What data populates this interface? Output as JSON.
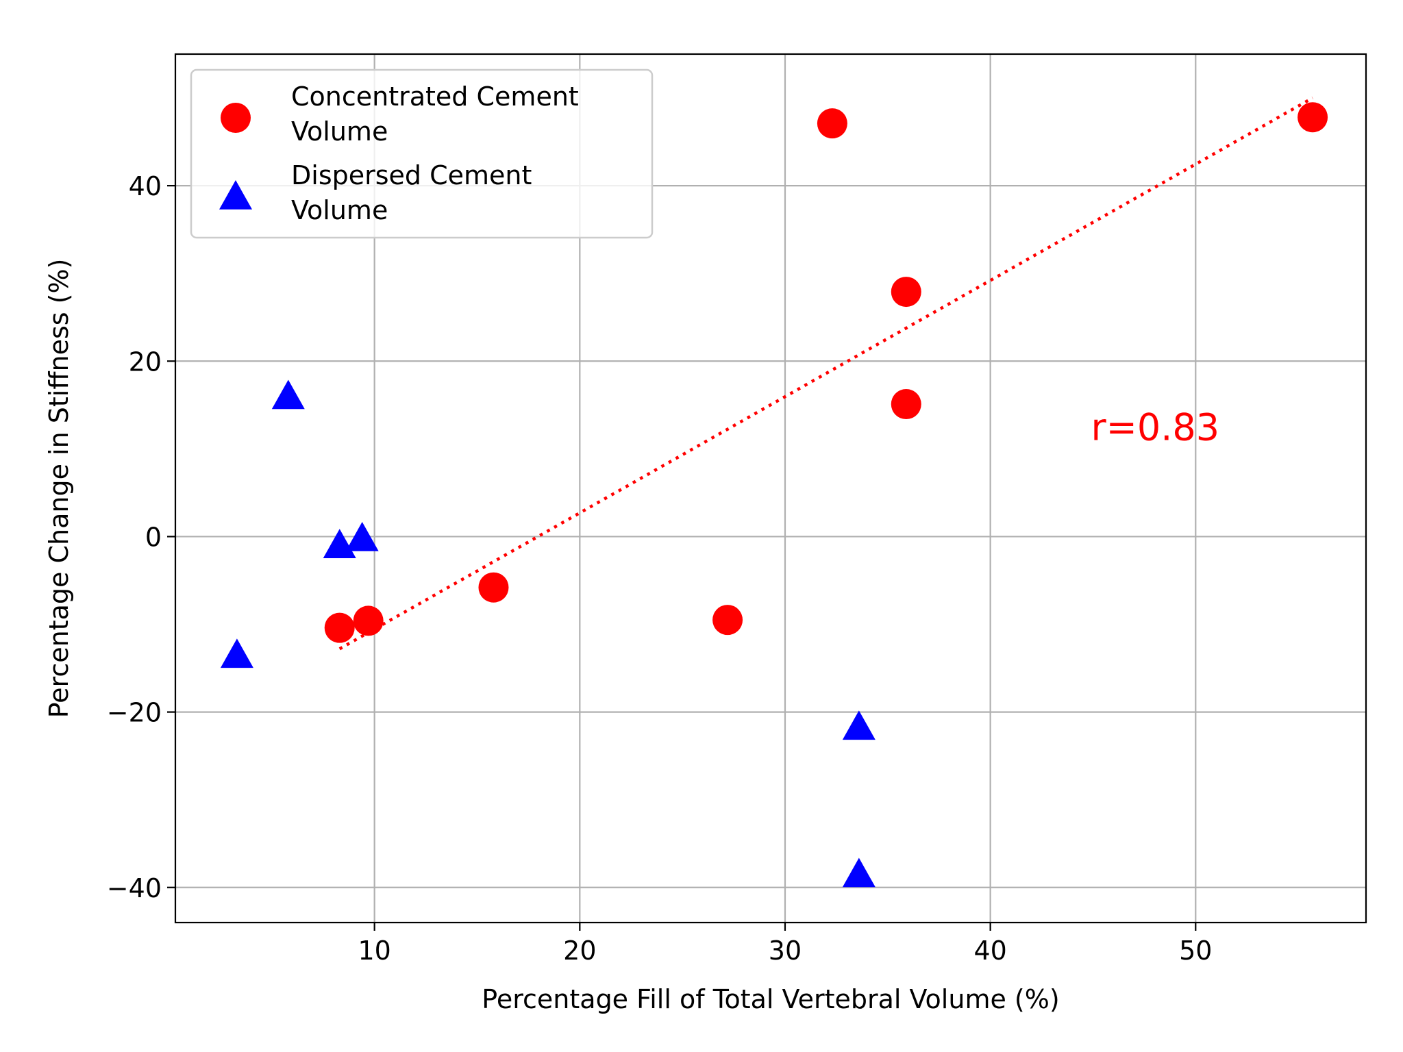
{
  "chart_data": {
    "type": "scatter",
    "xlabel": "Percentage Fill of Total Vertebral Volume (%)",
    "ylabel": "Percentage Change in Stiffness (%)",
    "xlim": [
      0.3,
      58.3
    ],
    "ylim": [
      -44,
      55
    ],
    "xticks": [
      10,
      20,
      30,
      40,
      50
    ],
    "yticks": [
      -40,
      -20,
      0,
      20,
      40
    ],
    "xtick_labels": [
      "10",
      "20",
      "30",
      "40",
      "50"
    ],
    "ytick_labels": [
      "−40",
      "−20",
      "0",
      "20",
      "40"
    ],
    "grid": true,
    "legend_position": "upper-left",
    "series": [
      {
        "name_lines": [
          "Concentrated Cement",
          " Volume"
        ],
        "marker": "circle",
        "color": "#ff0000",
        "points": [
          {
            "x": 8.3,
            "y": -10.4
          },
          {
            "x": 9.7,
            "y": -9.6
          },
          {
            "x": 15.8,
            "y": -5.8
          },
          {
            "x": 27.2,
            "y": -9.5
          },
          {
            "x": 32.3,
            "y": 47.1
          },
          {
            "x": 35.9,
            "y": 27.9
          },
          {
            "x": 35.9,
            "y": 15.1
          },
          {
            "x": 55.7,
            "y": 47.8
          }
        ]
      },
      {
        "name_lines": [
          "Dispersed Cement",
          " Volume"
        ],
        "marker": "triangle",
        "color": "#0000ff",
        "points": [
          {
            "x": 3.3,
            "y": -13.5
          },
          {
            "x": 5.8,
            "y": 16.0
          },
          {
            "x": 8.3,
            "y": -1.0
          },
          {
            "x": 9.4,
            "y": -0.2
          },
          {
            "x": 33.6,
            "y": -21.7
          },
          {
            "x": 33.6,
            "y": -38.5
          }
        ]
      }
    ],
    "trendline": {
      "x1": 8.3,
      "y1": -12.8,
      "x2": 55.7,
      "y2": 50.0,
      "color": "#ff0000",
      "style": "dotted"
    },
    "annotation": {
      "text": "r=0.83",
      "x": 44.9,
      "y": 11,
      "color": "#ff0000"
    }
  }
}
